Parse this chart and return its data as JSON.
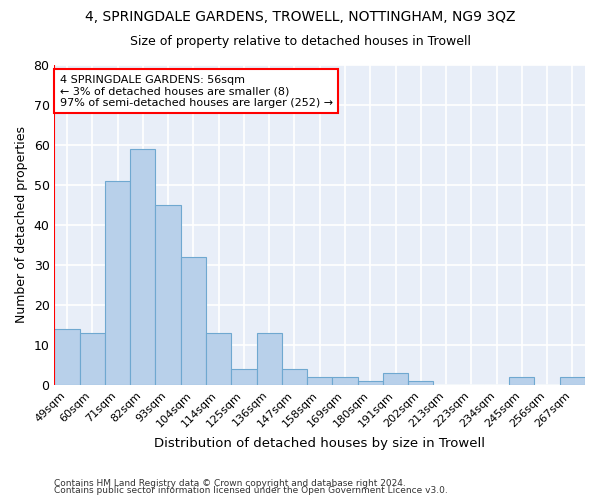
{
  "title1": "4, SPRINGDALE GARDENS, TROWELL, NOTTINGHAM, NG9 3QZ",
  "title2": "Size of property relative to detached houses in Trowell",
  "xlabel": "Distribution of detached houses by size in Trowell",
  "ylabel": "Number of detached properties",
  "categories": [
    "49sqm",
    "60sqm",
    "71sqm",
    "82sqm",
    "93sqm",
    "104sqm",
    "114sqm",
    "125sqm",
    "136sqm",
    "147sqm",
    "158sqm",
    "169sqm",
    "180sqm",
    "191sqm",
    "202sqm",
    "213sqm",
    "223sqm",
    "234sqm",
    "245sqm",
    "256sqm",
    "267sqm"
  ],
  "values": [
    14,
    13,
    51,
    59,
    45,
    32,
    13,
    4,
    13,
    4,
    2,
    2,
    1,
    3,
    1,
    0,
    0,
    0,
    2,
    0,
    2
  ],
  "bar_color": "#b8d0ea",
  "bar_edge_color": "#6fa8d0",
  "ylim": [
    0,
    80
  ],
  "yticks": [
    0,
    10,
    20,
    30,
    40,
    50,
    60,
    70,
    80
  ],
  "vline_x": 0.0,
  "annotation_text": "4 SPRINGDALE GARDENS: 56sqm\n← 3% of detached houses are smaller (8)\n97% of semi-detached houses are larger (252) →",
  "footnote1": "Contains HM Land Registry data © Crown copyright and database right 2024.",
  "footnote2": "Contains public sector information licensed under the Open Government Licence v3.0.",
  "background_color": "#e8eef8"
}
